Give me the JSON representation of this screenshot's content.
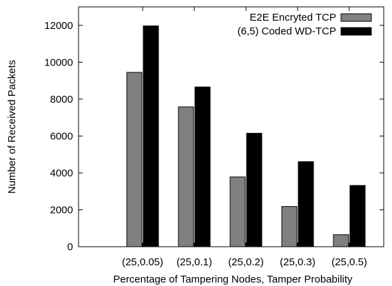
{
  "chart_data": {
    "type": "bar",
    "title": "",
    "xlabel": "Percentage of Tampering Nodes, Tamper Probability",
    "ylabel": "Number of Received Packets",
    "categories": [
      "(25,0.05)",
      "(25,0.1)",
      "(25,0.2)",
      "(25,0.3)",
      "(25,0.5)"
    ],
    "series": [
      {
        "name": "E2E Encryted TCP",
        "color": "#808080",
        "values": [
          9450,
          7580,
          3780,
          2180,
          650
        ]
      },
      {
        "name": "(6,5) Coded WD-TCP",
        "color": "#000000",
        "values": [
          11970,
          8660,
          6150,
          4610,
          3320
        ]
      }
    ],
    "ylim": [
      0,
      13000
    ],
    "yticks": [
      0,
      2000,
      4000,
      6000,
      8000,
      10000,
      12000
    ],
    "legend_position": "top-right",
    "grid": false
  }
}
